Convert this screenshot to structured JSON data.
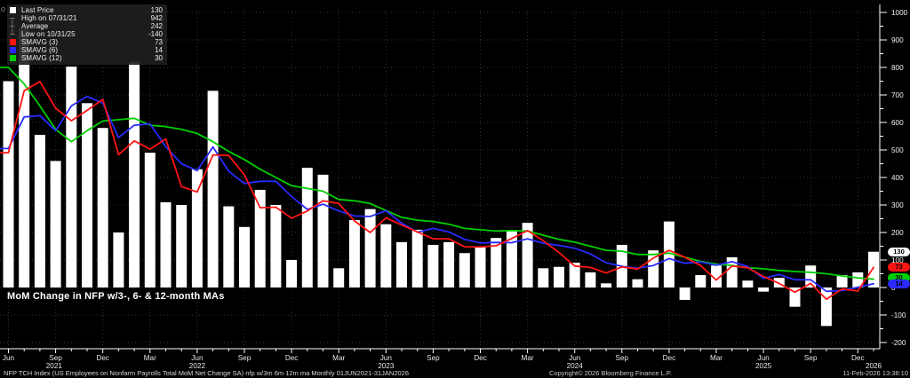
{
  "title": "MoM Change in NFP w/3-, 6- & 12-month MAs",
  "legend": {
    "rows": [
      {
        "icon": "white-square",
        "label": "Last Price",
        "value": "130"
      },
      {
        "icon": "high-marker",
        "label": "High on 07/31/21",
        "value": "942"
      },
      {
        "icon": "average-marker",
        "label": "Average",
        "value": "242"
      },
      {
        "icon": "low-marker",
        "label": "Low on 10/31/25",
        "value": "-140"
      },
      {
        "icon": "red-square",
        "label": "SMAVG (3)",
        "value": "73"
      },
      {
        "icon": "blue-square",
        "label": "SMAVG (6)",
        "value": "14"
      },
      {
        "icon": "green-square",
        "label": "SMAVG (12)",
        "value": "30"
      }
    ]
  },
  "axis_badges": [
    {
      "label": "130",
      "bg": "#ffffff"
    },
    {
      "label": "73",
      "bg": "#ff1414"
    },
    {
      "label": "30",
      "bg": "#00cf00"
    },
    {
      "label": "14",
      "bg": "#2a2aff"
    }
  ],
  "footer": {
    "left": "NFP TCH Index (US Employees on Nonfarm Payrolls Total MoM Net Change SA) nfp w/3m 6m 12m ma Monthly 01JUN2021-31JAN2026",
    "copyright": "Copyright© 2026 Bloomberg Finance L.P.",
    "datetime": "11-Feb-2026 13:38:10"
  },
  "colors": {
    "background": "#000000",
    "bar": "#ffffff",
    "sma3": "#ff1414",
    "sma6": "#2a2aff",
    "sma12": "#00cf00",
    "grid": "#343434",
    "axis": "#ffffff"
  },
  "chart_data": {
    "type": "bar",
    "title": "MoM Change in NFP w/3-, 6- & 12-month MAs",
    "frequency": "monthly",
    "start_month": "2021-06",
    "end_month": "2026-01",
    "ylim": [
      -250,
      1050
    ],
    "y_ticks": [
      -200,
      -100,
      0,
      100,
      200,
      300,
      400,
      500,
      600,
      700,
      800,
      900,
      1000
    ],
    "grid": true,
    "legend_position": "top-left",
    "bar_series": {
      "name": "NFP MoM Net Change",
      "color": "#ffffff",
      "values": [
        750,
        942,
        555,
        460,
        803,
        670,
        580,
        200,
        820,
        490,
        310,
        300,
        430,
        715,
        295,
        220,
        355,
        300,
        100,
        435,
        410,
        70,
        245,
        285,
        230,
        165,
        210,
        155,
        165,
        125,
        150,
        180,
        205,
        235,
        70,
        75,
        90,
        55,
        15,
        155,
        30,
        135,
        240,
        -45,
        45,
        80,
        110,
        25,
        -15,
        35,
        -70,
        80,
        -140,
        45,
        55,
        130
      ]
    },
    "line_series": [
      {
        "name": "SMAVG (3)",
        "color": "#ff1414",
        "values": [
          490,
          715,
          749,
          652,
          606,
          644,
          684,
          483,
          533,
          503,
          540,
          367,
          347,
          482,
          480,
          410,
          290,
          292,
          252,
          278,
          315,
          305,
          242,
          200,
          253,
          227,
          202,
          177,
          177,
          148,
          147,
          152,
          178,
          207,
          170,
          127,
          78,
          73,
          53,
          75,
          67,
          107,
          135,
          110,
          80,
          27,
          78,
          72,
          40,
          15,
          -17,
          15,
          -43,
          -5,
          -13,
          73
        ]
      },
      {
        "name": "SMAVG (6)",
        "color": "#2a2aff",
        "values": [
          505,
          620,
          625,
          570,
          660,
          695,
          670,
          545,
          590,
          595,
          512,
          450,
          425,
          511,
          423,
          378,
          386,
          386,
          331,
          284,
          303,
          278,
          260,
          258,
          279,
          234,
          201,
          215,
          202,
          175,
          162,
          164,
          163,
          177,
          161,
          153,
          143,
          122,
          90,
          77,
          70,
          80,
          105,
          88,
          93,
          81,
          94,
          76,
          33,
          47,
          28,
          28,
          -14,
          -11,
          1,
          14
        ]
      },
      {
        "name": "SMAVG (12)",
        "color": "#00cf00",
        "values": [
          800,
          740,
          660,
          575,
          530,
          570,
          605,
          610,
          615,
          590,
          585,
          575,
          560,
          530,
          495,
          465,
          430,
          400,
          370,
          360,
          350,
          320,
          315,
          305,
          280,
          255,
          245,
          240,
          230,
          215,
          210,
          205,
          207,
          205,
          190,
          175,
          165,
          150,
          135,
          132,
          120,
          120,
          125,
          110,
          95,
          85,
          80,
          72,
          68,
          62,
          58,
          55,
          50,
          42,
          35,
          30
        ]
      }
    ],
    "x_tick_labels": [
      {
        "month_index": 0,
        "label": "Jun"
      },
      {
        "month_index": 3,
        "label": "Sep"
      },
      {
        "month_index": 6,
        "label": "Dec"
      },
      {
        "month_index": 9,
        "label": "Mar"
      },
      {
        "month_index": 12,
        "label": "Jun"
      },
      {
        "month_index": 15,
        "label": "Sep"
      },
      {
        "month_index": 18,
        "label": "Dec"
      },
      {
        "month_index": 21,
        "label": "Mar"
      },
      {
        "month_index": 24,
        "label": "Jun"
      },
      {
        "month_index": 27,
        "label": "Sep"
      },
      {
        "month_index": 30,
        "label": "Dec"
      },
      {
        "month_index": 33,
        "label": "Mar"
      },
      {
        "month_index": 36,
        "label": "Jun"
      },
      {
        "month_index": 39,
        "label": "Sep"
      },
      {
        "month_index": 42,
        "label": "Dec"
      },
      {
        "month_index": 45,
        "label": "Mar"
      },
      {
        "month_index": 48,
        "label": "Jun"
      },
      {
        "month_index": 51,
        "label": "Sep"
      },
      {
        "month_index": 54,
        "label": "Dec"
      }
    ],
    "year_labels": [
      {
        "month_pos": 2.9,
        "label": "2021"
      },
      {
        "month_pos": 12,
        "label": "2022"
      },
      {
        "month_pos": 24,
        "label": "2023"
      },
      {
        "month_pos": 36,
        "label": "2024"
      },
      {
        "month_pos": 48,
        "label": "2025"
      },
      {
        "month_pos": 55,
        "label": "2026"
      }
    ]
  }
}
